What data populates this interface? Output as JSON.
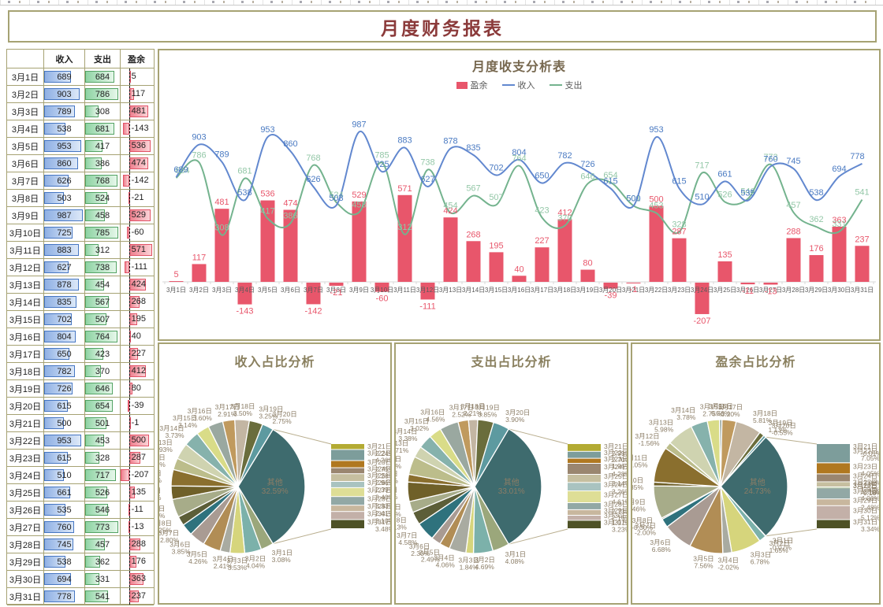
{
  "page": {
    "title": "月度财务报表"
  },
  "table": {
    "headers": [
      "",
      "收入",
      "支出",
      "盈余"
    ],
    "income_max": 987,
    "expense_max": 785,
    "surplus_min": -207,
    "surplus_max": 571
  },
  "combo_header": {
    "title": "月度收支分析表"
  },
  "chart_data": [
    {
      "type": "combo-bar-line",
      "title": "月度收支分析表",
      "categories": [
        "3月1日",
        "3月2日",
        "3月3日",
        "3月4日",
        "3月5日",
        "3月6日",
        "3月7日",
        "3月8日",
        "3月9日",
        "3月10日",
        "3月11日",
        "3月12日",
        "3月13日",
        "3月14日",
        "3月15日",
        "3月16日",
        "3月17日",
        "3月18日",
        "3月19日",
        "3月20日",
        "3月21日",
        "3月22日",
        "3月23日",
        "3月24日",
        "3月25日",
        "3月26日",
        "3月27日",
        "3月28日",
        "3月29日",
        "3月30日",
        "3月31日"
      ],
      "series": [
        {
          "name": "盈余",
          "chart": "bar",
          "color": "#e8566b",
          "label_color": "#e8566b",
          "values": [
            5,
            117,
            481,
            -143,
            536,
            474,
            -142,
            -21,
            529,
            -60,
            571,
            -111,
            424,
            268,
            195,
            40,
            227,
            412,
            80,
            -39,
            -1,
            500,
            287,
            -207,
            135,
            -11,
            -13,
            288,
            176,
            363,
            237
          ]
        },
        {
          "name": "收入",
          "chart": "line",
          "color": "#6288cf",
          "label_color": "#4a7ac2",
          "values": [
            689,
            903,
            789,
            538,
            953,
            860,
            626,
            503,
            987,
            725,
            883,
            627,
            878,
            835,
            702,
            804,
            650,
            782,
            726,
            615,
            500,
            953,
            615,
            510,
            661,
            535,
            760,
            745,
            538,
            694,
            778
          ]
        },
        {
          "name": "支出",
          "chart": "line",
          "color": "#74b38e",
          "label_color": "#93c7a7",
          "values": [
            684,
            786,
            308,
            681,
            417,
            386,
            768,
            524,
            458,
            785,
            312,
            738,
            454,
            567,
            507,
            764,
            423,
            370,
            646,
            654,
            501,
            453,
            328,
            717,
            526,
            546,
            773,
            457,
            362,
            331,
            541
          ]
        }
      ],
      "legend_position": "top",
      "grid": false
    },
    {
      "type": "pie-of-pie",
      "title": "收入占比分析",
      "values_from": "收入",
      "other_label": "其他",
      "split_index": 20
    },
    {
      "type": "pie-of-pie",
      "title": "支出占比分析",
      "values_from": "支出",
      "other_label": "其他",
      "split_index": 20
    },
    {
      "type": "pie-of-pie",
      "title": "盈余占比分析",
      "values_from": "盈余",
      "other_label": "其他",
      "split_index": 20
    }
  ],
  "colors": {
    "border_olive": "#a6a273",
    "report_title": "#8b3a3a",
    "axis_line": "#d9d9d9",
    "xlabel": "#5a5a5a",
    "pie_other": "#3e6b6e",
    "pie_label": "#8b7d66",
    "connector": "#b9ae8e",
    "pie_palette": [
      "#9ba77b",
      "#7cb1aa",
      "#d6d57c",
      "#a9aba1",
      "#b18d55",
      "#a99b93",
      "#2f727d",
      "#5c5e38",
      "#a7ac89",
      "#6f6029",
      "#8a6f2e",
      "#bcbd8b",
      "#cfd3b0",
      "#86b2ac",
      "#d9dc88",
      "#9aa8a0",
      "#c09a5e",
      "#c3b6a3",
      "#6a6d3c",
      "#5d9aa0"
    ],
    "bar_palette": [
      "#b3ab33",
      "#7d9d9b",
      "#b07820",
      "#9a8670",
      "#c6bfa0",
      "#a9c3c0",
      "#dede96",
      "#92a8a5",
      "#c8b79e",
      "#c3b0a8",
      "#4e5226"
    ]
  }
}
